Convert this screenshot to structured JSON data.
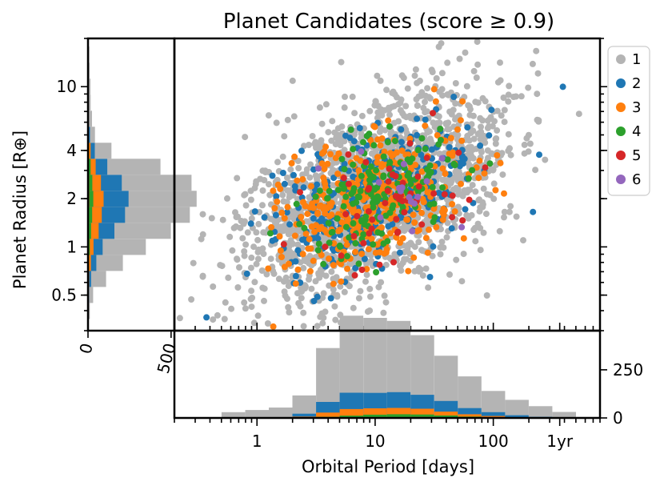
{
  "chart_data": {
    "type": "scatter",
    "title": "Planet Candidates (score ≥ 0.9)",
    "xlabel": "Orbital Period [days]",
    "ylabel": "Planet Radius [R⊕]",
    "xscale": "log",
    "yscale": "log",
    "xlim": [
      0.2,
      800
    ],
    "ylim": [
      0.3,
      20
    ],
    "xticks": [
      {
        "value": 1,
        "label": "1"
      },
      {
        "value": 10,
        "label": "10"
      },
      {
        "value": 100,
        "label": "100"
      },
      {
        "value": 365,
        "label": "1yr"
      }
    ],
    "yticks": [
      {
        "value": 0.5,
        "label": "0.5"
      },
      {
        "value": 1,
        "label": "1"
      },
      {
        "value": 2,
        "label": "2"
      },
      {
        "value": 4,
        "label": "4"
      },
      {
        "value": 10,
        "label": "10"
      }
    ],
    "legend": {
      "placement": "right",
      "entries": [
        {
          "label": "1",
          "color": "#b4b4b4"
        },
        {
          "label": "2",
          "color": "#1f77b4"
        },
        {
          "label": "3",
          "color": "#ff7f0e"
        },
        {
          "label": "4",
          "color": "#2ca02c"
        },
        {
          "label": "5",
          "color": "#d62728"
        },
        {
          "label": "6",
          "color": "#9467bd"
        }
      ]
    },
    "series": [
      {
        "name": "1",
        "color": "#b4b4b4",
        "count": 2000,
        "logP_center": 1.0,
        "logP_sd": 0.55,
        "logR_center": 0.33,
        "logR_sd": 0.27
      },
      {
        "name": "2",
        "color": "#1f77b4",
        "count": 360,
        "logP_center": 1.0,
        "logP_sd": 0.42,
        "logR_center": 0.3,
        "logR_sd": 0.2
      },
      {
        "name": "3",
        "color": "#ff7f0e",
        "count": 380,
        "logP_center": 1.0,
        "logP_sd": 0.38,
        "logR_center": 0.3,
        "logR_sd": 0.2
      },
      {
        "name": "4",
        "color": "#2ca02c",
        "count": 160,
        "logP_center": 1.05,
        "logP_sd": 0.33,
        "logR_center": 0.32,
        "logR_sd": 0.16
      },
      {
        "name": "5",
        "color": "#d62728",
        "count": 55,
        "logP_center": 1.0,
        "logP_sd": 0.33,
        "logR_center": 0.25,
        "logR_sd": 0.18
      },
      {
        "name": "6",
        "color": "#9467bd",
        "count": 16,
        "logP_center": 1.2,
        "logP_sd": 0.25,
        "logR_center": 0.33,
        "logR_sd": 0.14
      }
    ],
    "period_histogram": {
      "yticks": [
        0,
        250
      ],
      "bin_edges_logP": [
        -0.3,
        -0.1,
        0.1,
        0.3,
        0.5,
        0.7,
        0.9,
        1.1,
        1.3,
        1.5,
        1.7,
        1.9,
        2.1,
        2.3,
        2.5,
        2.7,
        2.9
      ],
      "stacked_counts": {
        "6": [
          0,
          0,
          0,
          0,
          0,
          0,
          0,
          1,
          2,
          1,
          0,
          0,
          0,
          0,
          0,
          0
        ],
        "5": [
          0,
          0,
          0,
          0,
          1,
          2,
          3,
          3,
          3,
          2,
          1,
          1,
          0,
          0,
          0,
          0
        ],
        "4": [
          0,
          0,
          0,
          1,
          5,
          10,
          14,
          15,
          13,
          10,
          6,
          3,
          1,
          0,
          0,
          0
        ],
        "3": [
          0,
          0,
          1,
          6,
          22,
          34,
          33,
          33,
          30,
          20,
          12,
          6,
          3,
          1,
          0,
          0
        ],
        "2": [
          0,
          1,
          3,
          15,
          55,
          85,
          80,
          82,
          72,
          55,
          32,
          20,
          10,
          5,
          1,
          0
        ],
        "1": [
          30,
          40,
          50,
          95,
          280,
          400,
          390,
          370,
          310,
          235,
          165,
          110,
          80,
          55,
          30,
          5
        ]
      }
    },
    "radius_histogram": {
      "xticks": [
        0,
        500
      ],
      "bin_edges_logR": [
        -0.45,
        -0.35,
        -0.25,
        -0.15,
        -0.05,
        0.05,
        0.15,
        0.25,
        0.35,
        0.45,
        0.55,
        0.65,
        0.75,
        0.85,
        0.95,
        1.05,
        1.15,
        1.25
      ],
      "stacked_counts": {
        "6": [
          0,
          0,
          0,
          0,
          0,
          0,
          0,
          1,
          1,
          1,
          0,
          0,
          0,
          0,
          0,
          0,
          0
        ],
        "5": [
          0,
          0,
          1,
          2,
          3,
          4,
          5,
          6,
          5,
          3,
          1,
          0,
          0,
          0,
          0,
          0,
          0
        ],
        "4": [
          0,
          1,
          2,
          4,
          8,
          15,
          20,
          25,
          20,
          12,
          5,
          1,
          0,
          0,
          0,
          0,
          0
        ],
        "3": [
          0,
          1,
          4,
          12,
          22,
          45,
          58,
          62,
          52,
          30,
          10,
          3,
          1,
          0,
          0,
          0,
          0
        ],
        "2": [
          1,
          4,
          12,
          32,
          55,
          95,
          140,
          150,
          125,
          70,
          25,
          8,
          3,
          1,
          0,
          0,
          0
        ],
        "1": [
          10,
          25,
          90,
          160,
          260,
          340,
          390,
          410,
          420,
          320,
          100,
          30,
          20,
          15,
          15,
          10,
          8
        ]
      }
    }
  }
}
